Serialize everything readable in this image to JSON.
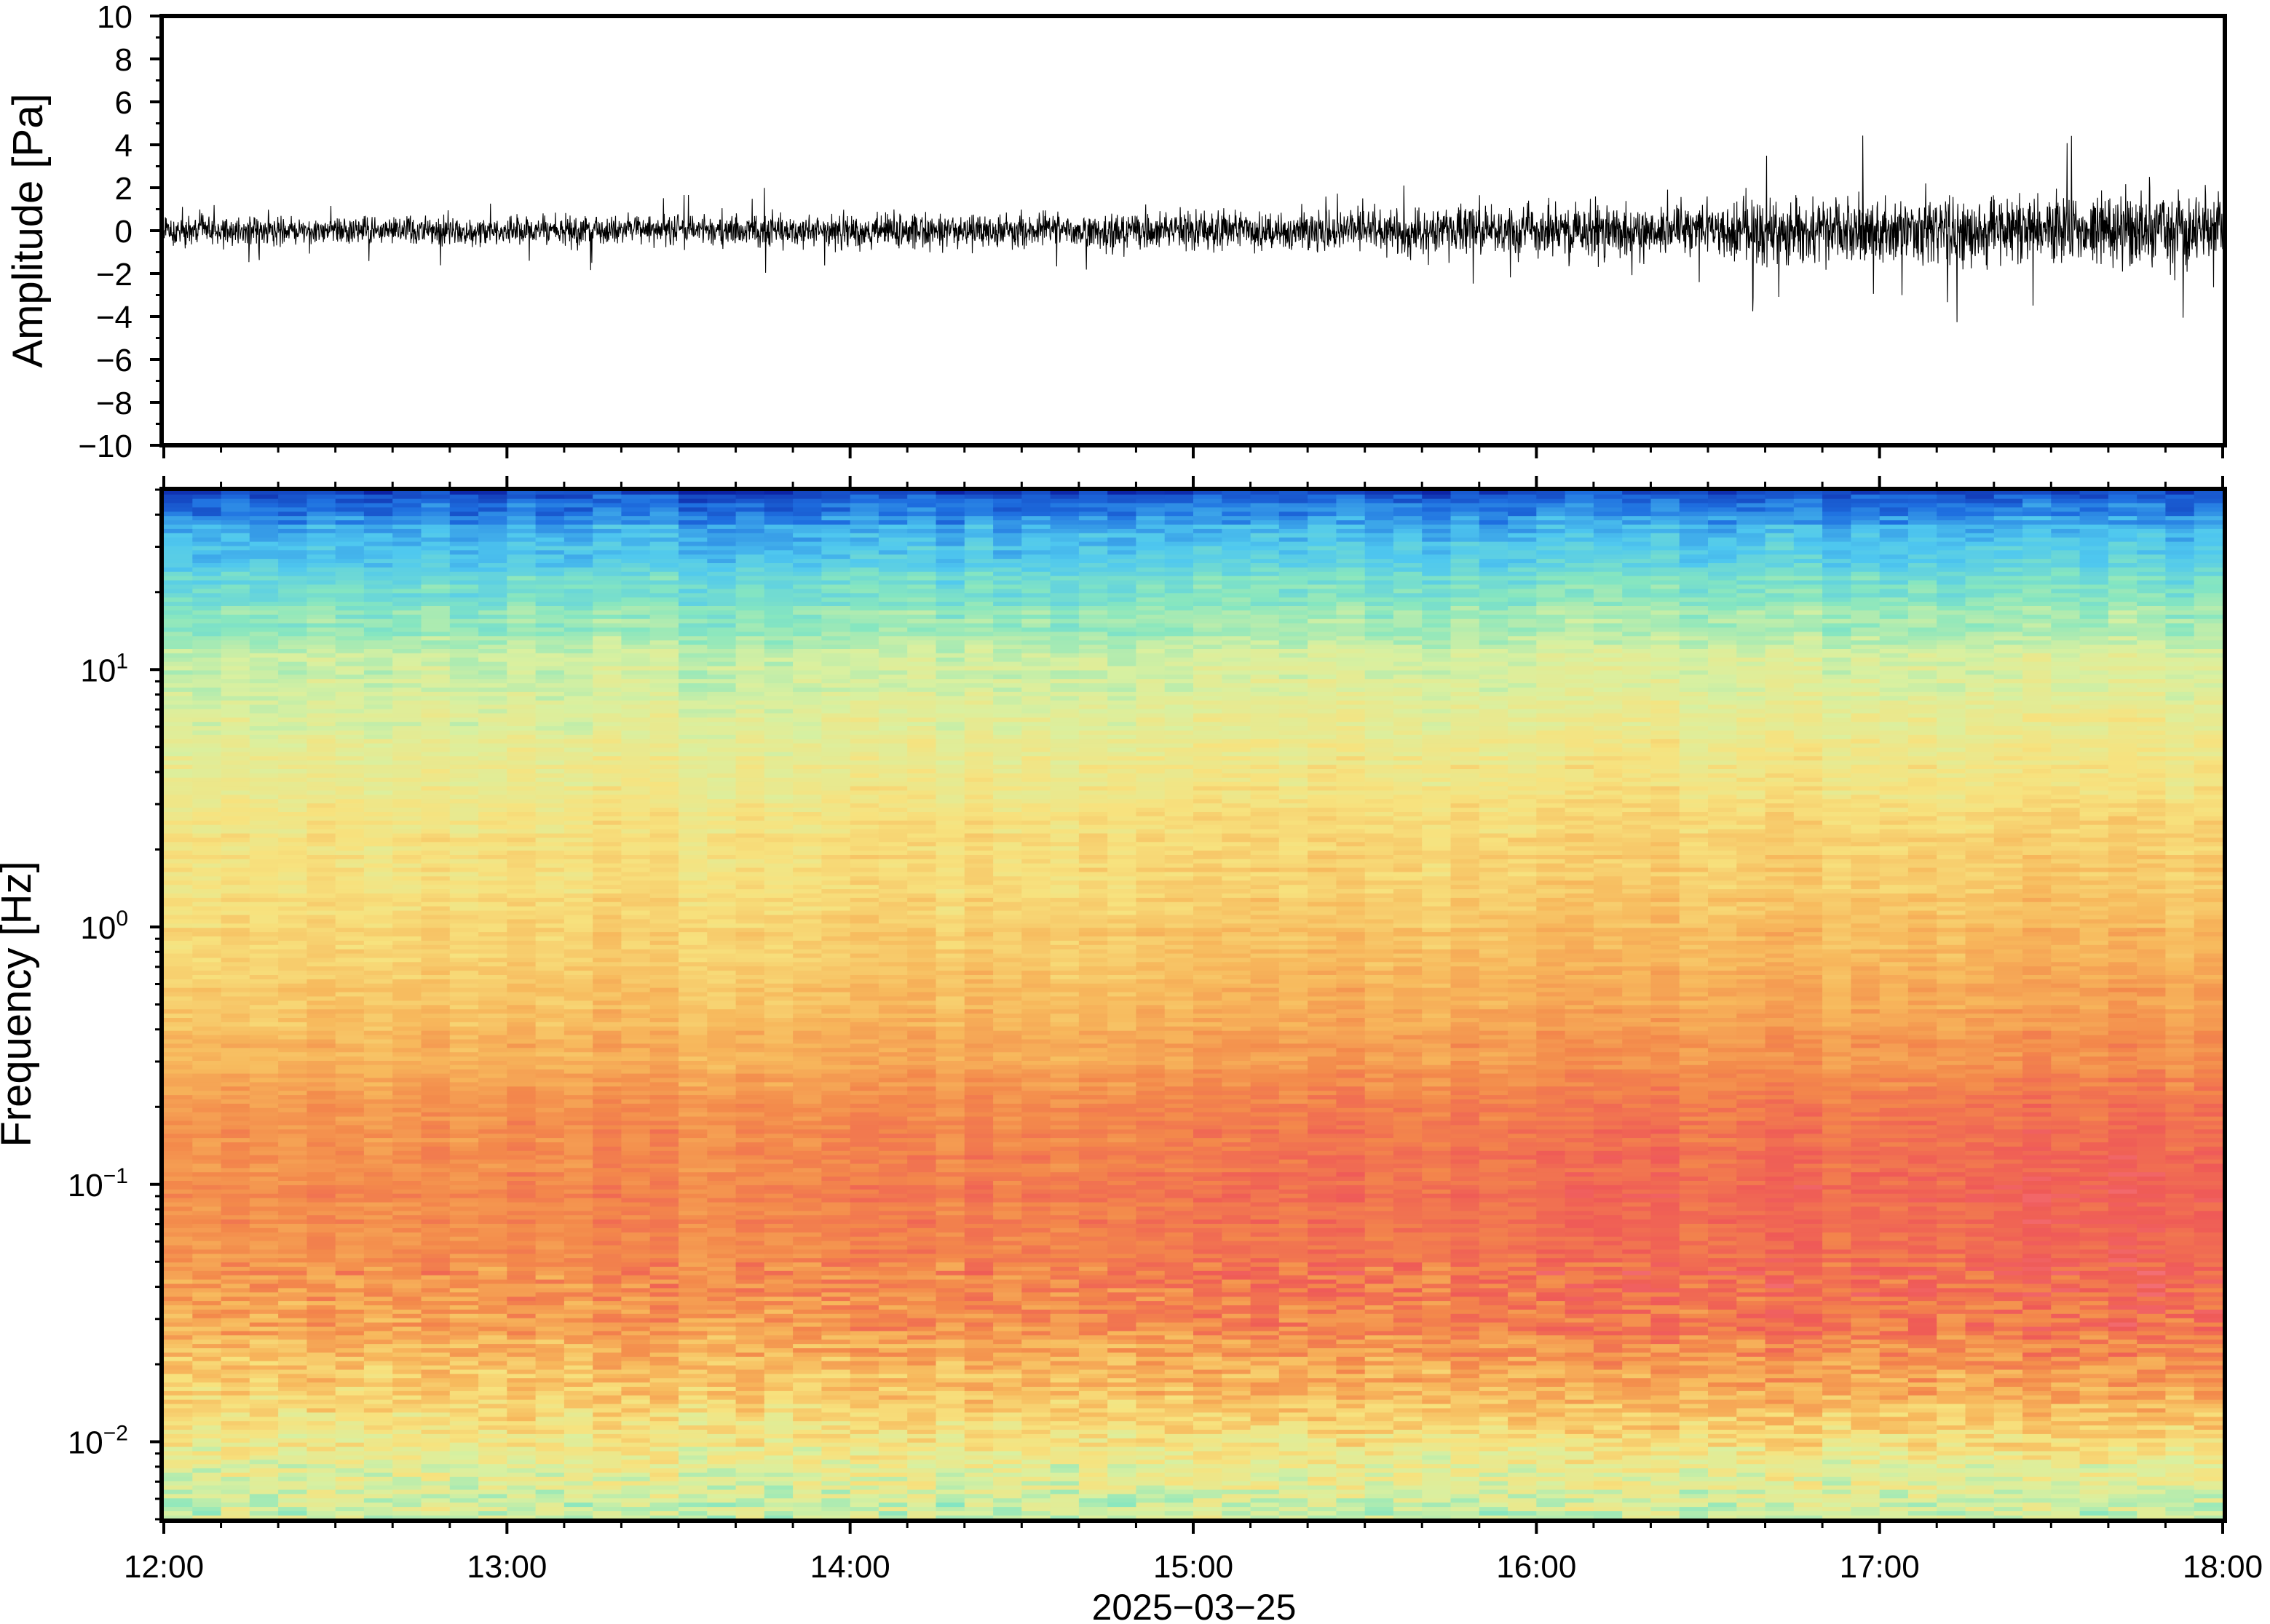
{
  "chart_data": [
    {
      "type": "line",
      "panel": "waveform",
      "ylabel": "Amplitude [Pa]",
      "ylim": [
        -10,
        10
      ],
      "yticks": [
        10,
        8,
        6,
        4,
        2,
        0,
        -2,
        -4,
        -6,
        -8,
        -10
      ],
      "ytick_labels": [
        "10",
        "8",
        "6",
        "4",
        "2",
        "0",
        "−2",
        "−4",
        "−6",
        "−8",
        "−10"
      ],
      "xlim": [
        "12:00",
        "18:00"
      ],
      "color": "#000000",
      "envelope": {
        "x_hours": [
          12.0,
          13.0,
          14.0,
          15.0,
          16.0,
          17.0,
          18.0
        ],
        "typical_half_amplitude_pa": [
          0.6,
          0.6,
          0.7,
          0.8,
          1.1,
          1.4,
          1.6
        ],
        "peak_abs_pa": [
          1.6,
          2.0,
          2.0,
          2.0,
          3.0,
          4.6,
          4.8
        ]
      }
    },
    {
      "type": "heatmap",
      "panel": "spectrogram",
      "ylabel": "Frequency [Hz]",
      "yscale": "log",
      "ylim_hz": [
        0.005,
        50
      ],
      "yticks_hz": [
        0.01,
        0.1,
        1,
        10
      ],
      "ytick_labels": [
        {
          "base": "10",
          "exp": "−2"
        },
        {
          "base": "10",
          "exp": "−1"
        },
        {
          "base": "10",
          "exp": "0"
        },
        {
          "base": "10",
          "exp": "1"
        }
      ],
      "xlabel": "2025−03−25",
      "xticks": [
        "12:00",
        "13:00",
        "14:00",
        "15:00",
        "16:00",
        "17:00",
        "18:00"
      ],
      "colormap": "rainbow (blue = low power, red/pink = high power)",
      "colormap_colors": [
        "#0a1a9e",
        "#1e6fe0",
        "#4fc8ef",
        "#86e6c0",
        "#d9f0a0",
        "#f7e27e",
        "#f7b85c",
        "#f3894b",
        "#ef5a57",
        "#f77f8c"
      ],
      "power_profile": {
        "freq_hz": [
          0.005,
          0.008,
          0.015,
          0.03,
          0.06,
          0.1,
          0.2,
          0.4,
          1,
          3,
          10,
          20,
          35,
          50
        ],
        "level_start_0to1": [
          0.42,
          0.48,
          0.58,
          0.7,
          0.76,
          0.76,
          0.73,
          0.64,
          0.57,
          0.52,
          0.42,
          0.3,
          0.18,
          0.05
        ],
        "level_end_0to1": [
          0.42,
          0.5,
          0.7,
          0.84,
          0.88,
          0.88,
          0.83,
          0.75,
          0.67,
          0.58,
          0.46,
          0.34,
          0.2,
          0.06
        ]
      }
    }
  ]
}
